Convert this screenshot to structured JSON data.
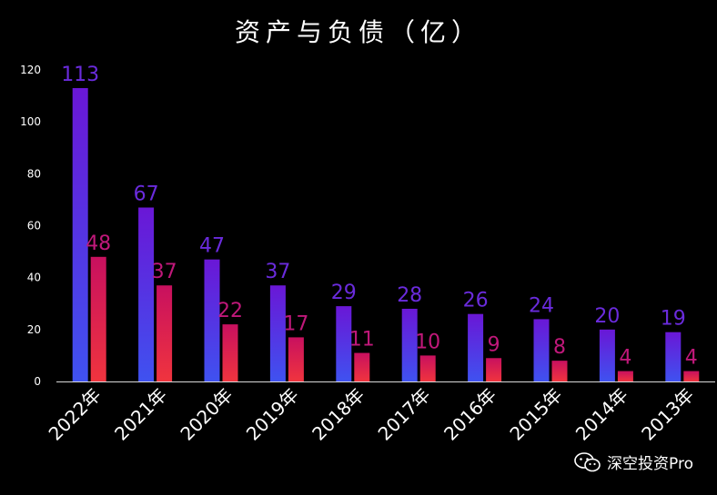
{
  "colors": {
    "background": "#000000",
    "assets_label": "#6a2bdc",
    "liabilities_label": "#c0187a",
    "axis_text": "#ffffff"
  },
  "chart_data": {
    "type": "bar",
    "title": "资产与负债（亿）",
    "categories": [
      "2022年",
      "2021年",
      "2020年",
      "2019年",
      "2018年",
      "2017年",
      "2016年",
      "2015年",
      "2014年",
      "2013年"
    ],
    "series": [
      {
        "values": [
          113,
          67,
          47,
          37,
          29,
          28,
          26,
          24,
          20,
          19
        ]
      },
      {
        "values": [
          48,
          37,
          22,
          17,
          11,
          10,
          9,
          8,
          4,
          4
        ]
      }
    ],
    "yticks": [
      0,
      20,
      40,
      60,
      80,
      100,
      120
    ],
    "ylim": [
      0,
      120
    ],
    "xlabel": "",
    "ylabel": "",
    "grid": false,
    "legend": "none"
  },
  "watermark": {
    "icon": "wechat-icon",
    "text": "深空投资Pro"
  }
}
